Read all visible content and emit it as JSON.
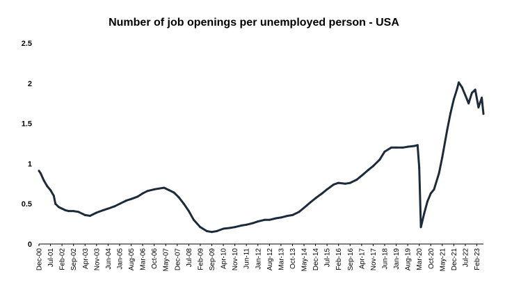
{
  "chart_data": {
    "type": "line",
    "title": "Number of job openings per unemployed person - USA",
    "xlabel": "",
    "ylabel": "",
    "ylim": [
      0,
      2.5
    ],
    "yticks": [
      "0",
      "0.5",
      "1",
      "1.5",
      "2",
      "2.5"
    ],
    "grid": false,
    "legend": "none",
    "line_color": "#1c2b39",
    "xticks": [
      "Dec-00",
      "Jul-01",
      "Feb-02",
      "Sep-02",
      "Apr-03",
      "Nov-03",
      "Jun-04",
      "Jan-05",
      "Aug-05",
      "Mar-06",
      "Oct-06",
      "May-07",
      "Dec-07",
      "Jul-08",
      "Feb-09",
      "Sep-09",
      "Apr-10",
      "Nov-10",
      "Jun-11",
      "Jan-12",
      "Aug-12",
      "Mar-13",
      "Oct-13",
      "May-14",
      "Dec-14",
      "Jul-15",
      "Feb-16",
      "Sep-16",
      "Apr-17",
      "Nov-17",
      "Jun-18",
      "Jan-19",
      "Aug-19",
      "Mar-20",
      "Oct-20",
      "May-21",
      "Dec-21",
      "Jul-22",
      "Feb-23"
    ],
    "series": [
      {
        "points": [
          [
            "2000-12",
            0.91
          ],
          [
            "2001-01",
            0.88
          ],
          [
            "2001-03",
            0.79
          ],
          [
            "2001-05",
            0.72
          ],
          [
            "2001-07",
            0.67
          ],
          [
            "2001-09",
            0.6
          ],
          [
            "2001-10",
            0.5
          ],
          [
            "2001-12",
            0.46
          ],
          [
            "2002-02",
            0.44
          ],
          [
            "2002-04",
            0.42
          ],
          [
            "2002-06",
            0.41
          ],
          [
            "2002-09",
            0.41
          ],
          [
            "2002-12",
            0.4
          ],
          [
            "2003-04",
            0.36
          ],
          [
            "2003-07",
            0.35
          ],
          [
            "2003-11",
            0.39
          ],
          [
            "2004-03",
            0.42
          ],
          [
            "2004-06",
            0.44
          ],
          [
            "2004-10",
            0.47
          ],
          [
            "2005-01",
            0.5
          ],
          [
            "2005-05",
            0.54
          ],
          [
            "2005-08",
            0.56
          ],
          [
            "2005-12",
            0.59
          ],
          [
            "2006-03",
            0.63
          ],
          [
            "2006-06",
            0.66
          ],
          [
            "2006-10",
            0.68
          ],
          [
            "2007-01",
            0.69
          ],
          [
            "2007-04",
            0.7
          ],
          [
            "2007-07",
            0.67
          ],
          [
            "2007-10",
            0.64
          ],
          [
            "2008-01",
            0.58
          ],
          [
            "2008-04",
            0.5
          ],
          [
            "2008-07",
            0.41
          ],
          [
            "2008-10",
            0.3
          ],
          [
            "2009-02",
            0.21
          ],
          [
            "2009-06",
            0.16
          ],
          [
            "2009-09",
            0.15
          ],
          [
            "2009-12",
            0.16
          ],
          [
            "2010-04",
            0.19
          ],
          [
            "2010-08",
            0.2
          ],
          [
            "2010-11",
            0.21
          ],
          [
            "2011-03",
            0.23
          ],
          [
            "2011-06",
            0.24
          ],
          [
            "2011-10",
            0.26
          ],
          [
            "2012-01",
            0.28
          ],
          [
            "2012-05",
            0.3
          ],
          [
            "2012-08",
            0.3
          ],
          [
            "2012-12",
            0.32
          ],
          [
            "2013-03",
            0.33
          ],
          [
            "2013-07",
            0.35
          ],
          [
            "2013-10",
            0.36
          ],
          [
            "2014-02",
            0.4
          ],
          [
            "2014-05",
            0.45
          ],
          [
            "2014-09",
            0.52
          ],
          [
            "2014-12",
            0.57
          ],
          [
            "2015-04",
            0.63
          ],
          [
            "2015-07",
            0.68
          ],
          [
            "2015-11",
            0.74
          ],
          [
            "2016-02",
            0.76
          ],
          [
            "2016-06",
            0.75
          ],
          [
            "2016-09",
            0.76
          ],
          [
            "2017-01",
            0.8
          ],
          [
            "2017-04",
            0.85
          ],
          [
            "2017-08",
            0.92
          ],
          [
            "2017-11",
            0.97
          ],
          [
            "2018-03",
            1.05
          ],
          [
            "2018-06",
            1.15
          ],
          [
            "2018-10",
            1.2
          ],
          [
            "2019-01",
            1.2
          ],
          [
            "2019-05",
            1.2
          ],
          [
            "2019-08",
            1.21
          ],
          [
            "2019-12",
            1.22
          ],
          [
            "2020-02",
            1.23
          ],
          [
            "2020-03",
            0.95
          ],
          [
            "2020-04",
            0.21
          ],
          [
            "2020-06",
            0.38
          ],
          [
            "2020-08",
            0.53
          ],
          [
            "2020-10",
            0.63
          ],
          [
            "2020-12",
            0.68
          ],
          [
            "2021-03",
            0.88
          ],
          [
            "2021-05",
            1.08
          ],
          [
            "2021-08",
            1.42
          ],
          [
            "2021-10",
            1.63
          ],
          [
            "2021-12",
            1.8
          ],
          [
            "2022-02",
            1.93
          ],
          [
            "2022-03",
            2.01
          ],
          [
            "2022-05",
            1.95
          ],
          [
            "2022-07",
            1.85
          ],
          [
            "2022-09",
            1.75
          ],
          [
            "2022-11",
            1.88
          ],
          [
            "2023-01",
            1.92
          ],
          [
            "2023-03",
            1.7
          ],
          [
            "2023-05",
            1.82
          ],
          [
            "2023-06",
            1.62
          ]
        ]
      }
    ]
  }
}
